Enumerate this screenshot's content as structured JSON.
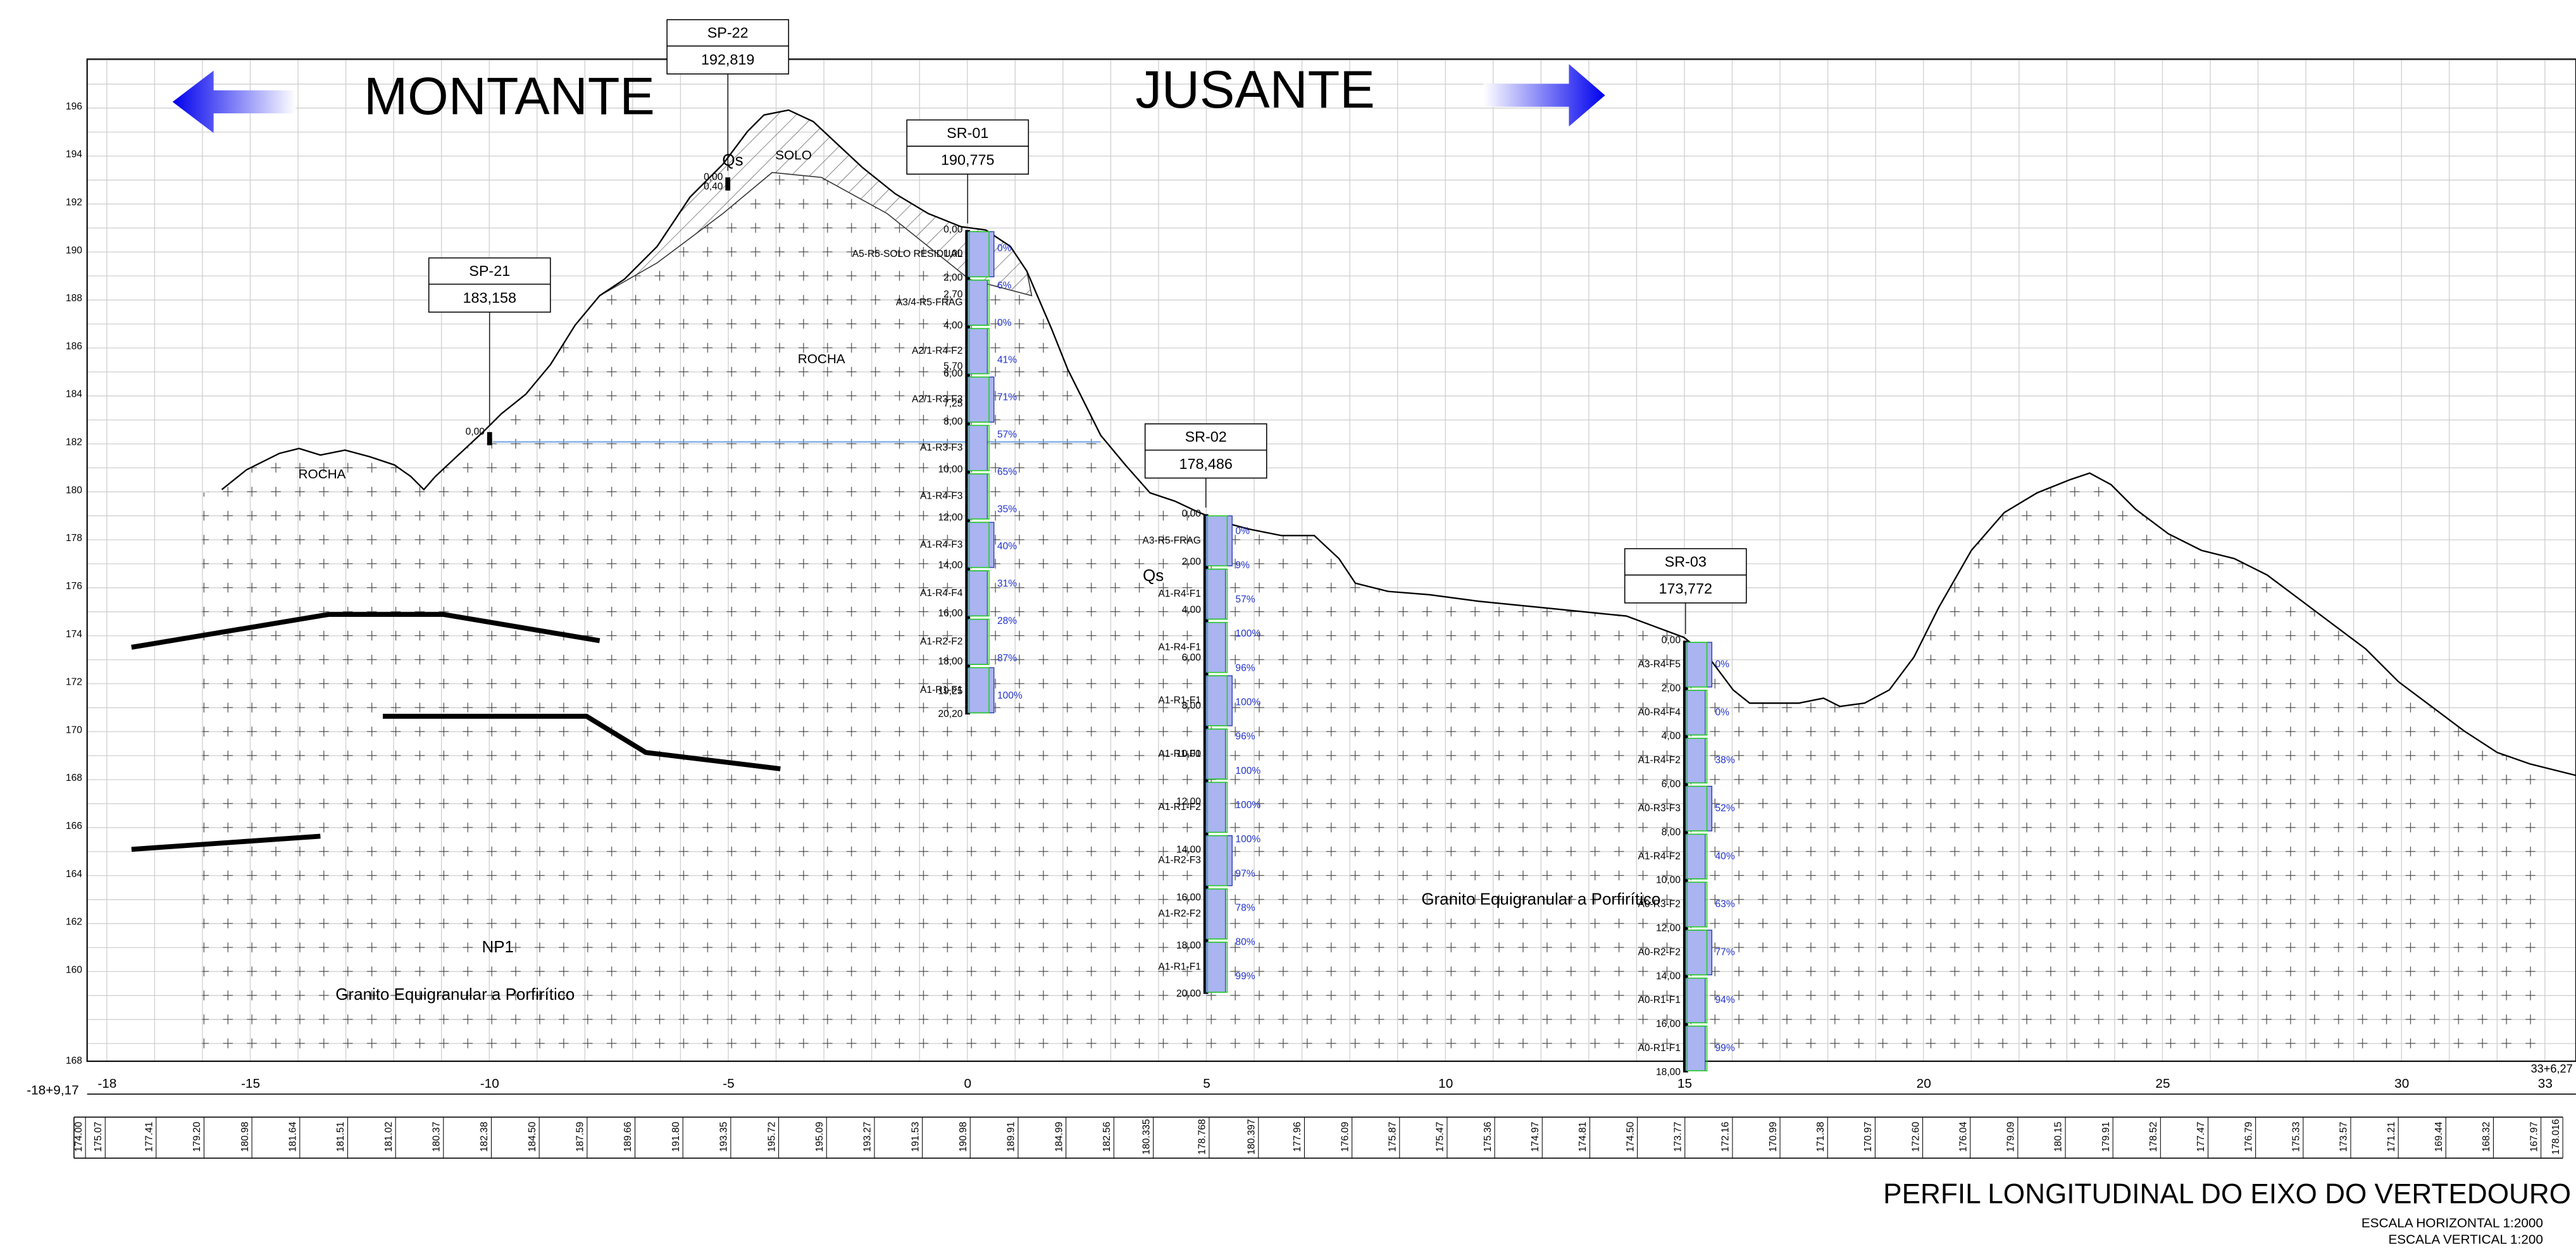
{
  "header": {
    "upstream": "MONTANTE",
    "downstream": "JUSANTE"
  },
  "boreholes": [
    {
      "id": "SP-22",
      "elevation": "192,819",
      "depths": [
        "0,00",
        "0,40"
      ],
      "codes": []
    },
    {
      "id": "SP-21",
      "elevation": "183,158",
      "depths": [
        "0,00"
      ],
      "codes": []
    },
    {
      "id": "SR-01",
      "elevation": "190,775",
      "depths": [
        "0,00",
        "1,00",
        "2,00",
        "2,70",
        "4,00",
        "5,70",
        "6,00",
        "7,25",
        "8,00",
        "10,00",
        "12,00",
        "14,00",
        "16,00",
        "18,00",
        "19,25",
        "20,20"
      ],
      "codes": [
        "A5-R5-SOLO RESIDUAL",
        "A3/4-R5-FRAG",
        "A2/1-R4-F2",
        "A2/1-R3-F3",
        "A1-R3-F3",
        "A1-R4-F3",
        "A1-R4-F3",
        "A1-R4-F4",
        "A1-R2-F2",
        "A1-R1-F1"
      ],
      "rqd": [
        "0%",
        "6%",
        "0%",
        "41%",
        "71%",
        "57%",
        "65%",
        "35%",
        "40%",
        "31%",
        "28%",
        "87%",
        "100%"
      ]
    },
    {
      "id": "SR-02",
      "elevation": "178,486",
      "depths": [
        "0,00",
        "2,00",
        "4,00",
        "6,00",
        "8,00",
        "10,00",
        "12,00",
        "14,00",
        "16,00",
        "18,00",
        "20,00"
      ],
      "codes": [
        "A3-R5-FRAG",
        "A1-R4-F1",
        "A1-R4-F1",
        "A1-R1-F1",
        "A1-R1-F1",
        "A1-R1-F2",
        "A1-R2-F3",
        "A1-R2-F2",
        "A1-R1-F1"
      ],
      "rqd": [
        "0%",
        "9%",
        "57%",
        "100%",
        "96%",
        "100%",
        "96%",
        "100%",
        "100%",
        "100%",
        "97%",
        "78%",
        "80%",
        "99%"
      ]
    },
    {
      "id": "SR-03",
      "elevation": "173,772",
      "depths": [
        "0,00",
        "2,00",
        "4,00",
        "6,00",
        "8,00",
        "10,00",
        "12,00",
        "14,00",
        "16,00",
        "18,00"
      ],
      "codes": [
        "A3-R4-F5",
        "A0-R4-F4",
        "A1-R4-F2",
        "A0-R3-F3",
        "A1-R4-F2",
        "A0-R3-F2",
        "A0-R2-F2",
        "A0-R1-F1",
        "A0-R1-F1"
      ],
      "rqd": [
        "0%",
        "0%",
        "38%",
        "52%",
        "40%",
        "63%",
        "77%",
        "94%",
        "99%"
      ]
    }
  ],
  "axis": {
    "elevations": [
      "196",
      "194",
      "192",
      "190",
      "188",
      "186",
      "184",
      "182",
      "180",
      "178",
      "176",
      "174",
      "172",
      "170",
      "168",
      "166",
      "164",
      "162",
      "160"
    ],
    "bottom_elevation": "168",
    "stations": [
      "-18",
      "-15",
      "-10",
      "-5",
      "0",
      "5",
      "10",
      "15",
      "20",
      "25",
      "30",
      "33"
    ],
    "start_station": "-18+9,17",
    "end_station": "33+6,27",
    "ground_elevations": [
      "174.00",
      "175.07",
      "177.41",
      "179.20",
      "180.98",
      "181.64",
      "181.51",
      "181.02",
      "180.37",
      "182.38",
      "184.50",
      "187.59",
      "189.66",
      "191.80",
      "193.35",
      "195.72",
      "195.09",
      "193.27",
      "191.53",
      "190.98",
      "189.91",
      "184.99",
      "182.56",
      "180.335",
      "178.768",
      "180.397",
      "177.96",
      "176.09",
      "175.87",
      "175.47",
      "175.36",
      "174.97",
      "174.81",
      "174.50",
      "173.77",
      "172.16",
      "170.99",
      "171.38",
      "170.97",
      "172.60",
      "176.04",
      "179.09",
      "180.15",
      "179.91",
      "178.52",
      "177.47",
      "176.79",
      "175.33",
      "173.57",
      "171.21",
      "169.44",
      "168.32",
      "167.97",
      "178.016"
    ]
  },
  "labels": {
    "qs_1": "Qs",
    "soil": "SOLO",
    "rock_1": "ROCHA",
    "rock_2": "ROCHA",
    "qs_2": "Qs",
    "np1": "NP1",
    "granite_1": "Granito Equigranular a Porfirítico",
    "granite_2": "Granito Equigranular a Porfirítico"
  },
  "footer": {
    "title": "PERFIL LONGITUDINAL DO EIXO DO VERTEDOURO",
    "scale_h": "ESCALA HORIZONTAL 1:2000",
    "scale_v": "ESCALA VERTICAL 1:200"
  }
}
